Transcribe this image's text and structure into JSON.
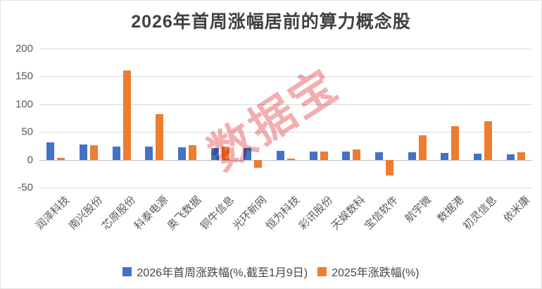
{
  "title": "2026年首周涨幅居前的算力概念股",
  "watermark": "数据宝",
  "colors": {
    "series_2026": "#4472C4",
    "series_2025": "#ED7D31",
    "title_text": "#404040",
    "axis_text": "#595959",
    "gridline": "#D9D9D9",
    "zero_line": "#BFBFBF",
    "watermark": "#EB7D80"
  },
  "chart_data": {
    "type": "bar",
    "title": "2026年首周涨幅居前的算力概念股",
    "categories": [
      "润泽科技",
      "南兴股份",
      "芯原股份",
      "科泰电源",
      "奥飞数据",
      "铜牛信息",
      "光环新网",
      "恒为科技",
      "彩讯股份",
      "天娱数科",
      "宝信软件",
      "航宇微",
      "数据港",
      "初灵信息",
      "依米康"
    ],
    "series": [
      {
        "name": "2026年首周涨跌幅(%,截至1月9日)",
        "color": "#4472C4",
        "values": [
          31,
          28,
          23,
          23,
          22,
          21,
          21,
          16,
          15,
          15,
          14,
          13,
          12,
          11,
          10
        ]
      },
      {
        "name": "2025年涨跌幅(%)",
        "color": "#ED7D31",
        "values": [
          3,
          26,
          161,
          82,
          26,
          24,
          -15,
          2,
          15,
          18,
          -28,
          44,
          60,
          69,
          13
        ]
      }
    ],
    "ylabel": "",
    "xlabel": "",
    "ylim": [
      -50,
      200
    ],
    "yticks": [
      200,
      150,
      100,
      50,
      0,
      -50
    ],
    "grid": true,
    "legend_position": "bottom",
    "annotations": [
      "数据宝"
    ]
  }
}
